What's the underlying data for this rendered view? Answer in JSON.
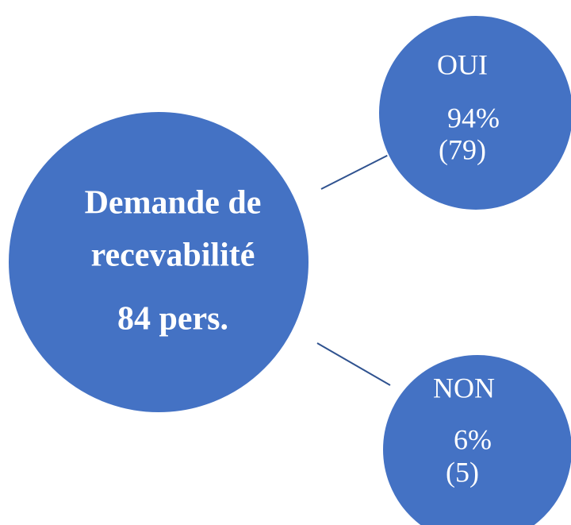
{
  "nodes": [
    {
      "lines": [
        "Demande de",
        "recevabilité",
        "84 pers."
      ]
    },
    {
      "lines": [
        "OUI",
        "94%",
        "(79)"
      ]
    },
    {
      "lines": [
        "NON",
        "6%",
        "(5)"
      ]
    }
  ]
}
